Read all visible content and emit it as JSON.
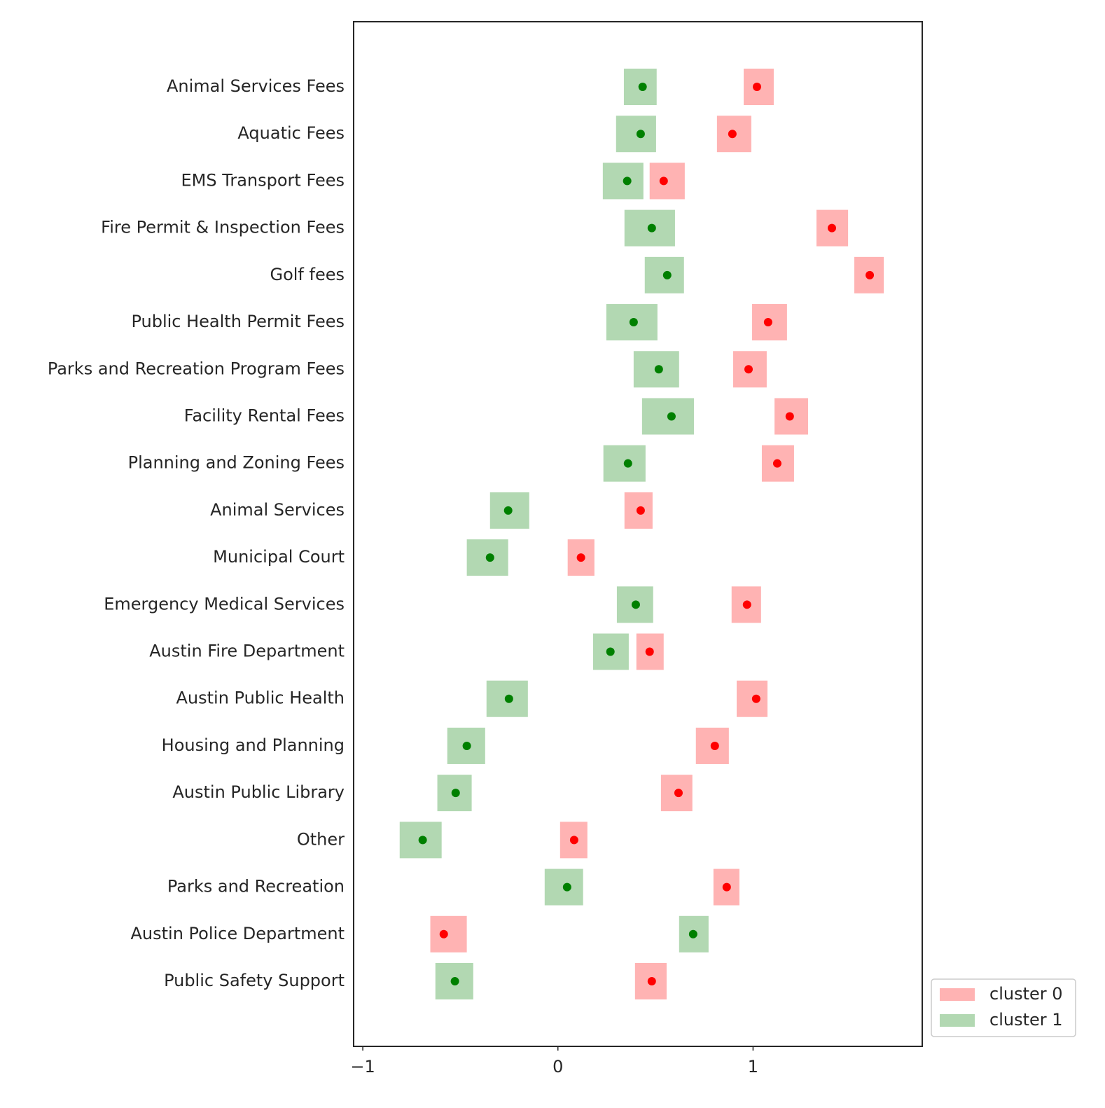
{
  "chart_data": {
    "type": "interval-dot",
    "categories": [
      "Animal Services Fees",
      "Aquatic Fees",
      "EMS Transport Fees",
      "Fire Permit & Inspection Fees",
      "Golf fees",
      "Public Health Permit Fees",
      "Parks and Recreation Program Fees",
      "Facility Rental Fees",
      "Planning and Zoning Fees",
      "Animal Services",
      "Municipal Court",
      "Emergency Medical Services",
      "Austin Fire Department",
      "Austin Public Health",
      "Housing and Planning",
      "Austin Public Library",
      "Other",
      "Parks and Recreation",
      "Austin Police Department",
      "Public Safety Support"
    ],
    "series": [
      {
        "name": "cluster 0",
        "color": "#ff0000",
        "box_color": "#ffb3b3",
        "values": [
          1.02,
          0.894,
          0.542,
          1.404,
          1.598,
          1.077,
          0.977,
          1.188,
          1.124,
          0.424,
          0.118,
          0.969,
          0.47,
          1.016,
          0.804,
          0.618,
          0.083,
          0.865,
          -0.585,
          0.481
        ],
        "lower": [
          0.952,
          0.815,
          0.47,
          1.325,
          1.519,
          0.995,
          0.898,
          1.11,
          1.045,
          0.341,
          0.05,
          0.89,
          0.402,
          0.916,
          0.707,
          0.528,
          0.011,
          0.797,
          -0.654,
          0.395
        ],
        "upper": [
          1.106,
          0.991,
          0.65,
          1.487,
          1.67,
          1.174,
          1.07,
          1.282,
          1.21,
          0.485,
          0.187,
          1.041,
          0.542,
          1.074,
          0.876,
          0.689,
          0.151,
          0.93,
          -0.467,
          0.557
        ]
      },
      {
        "name": "cluster 1",
        "color": "#008000",
        "box_color": "#b2d8b2",
        "values": [
          0.434,
          0.424,
          0.355,
          0.481,
          0.56,
          0.388,
          0.517,
          0.582,
          0.359,
          -0.255,
          -0.348,
          0.399,
          0.269,
          -0.251,
          -0.467,
          -0.524,
          -0.693,
          0.047,
          0.693,
          -0.528
        ],
        "lower": [
          0.338,
          0.298,
          0.23,
          0.341,
          0.445,
          0.248,
          0.388,
          0.431,
          0.233,
          -0.348,
          -0.467,
          0.302,
          0.18,
          -0.366,
          -0.567,
          -0.618,
          -0.811,
          -0.068,
          0.621,
          -0.628
        ],
        "upper": [
          0.506,
          0.503,
          0.438,
          0.6,
          0.646,
          0.51,
          0.621,
          0.697,
          0.449,
          -0.147,
          -0.255,
          0.488,
          0.363,
          -0.154,
          -0.373,
          -0.442,
          -0.596,
          0.129,
          0.772,
          -0.434
        ]
      }
    ],
    "xlim": [
      -1.047,
      1.867
    ],
    "xticks": [
      {
        "value": -1,
        "label": "−1"
      },
      0,
      1
    ],
    "grid": false,
    "legend": "lower right outside"
  }
}
